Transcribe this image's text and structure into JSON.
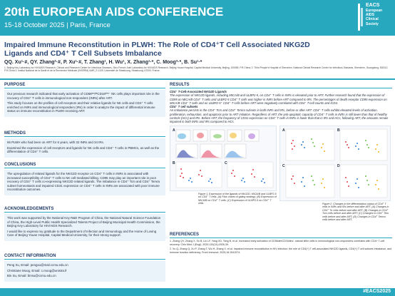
{
  "header": {
    "conference": "20th EUROPEAN AIDS CONFERENCE",
    "dates": "15-18 October 2025 | Paris, France",
    "logo": {
      "abbr": "EACS",
      "line1": "European",
      "line2": "AIDS",
      "line3": "Clinical",
      "line4": "Society"
    },
    "colors": {
      "banner": "#27a8bf",
      "title": "#2c4a7a",
      "box": "#eaf2fa"
    }
  },
  "poster": {
    "title": "Impaired Immune Reconstitution in PLWH: The Role of CD4⁺T Cell Associated NKG2D Ligands and CD4⁺ T Cell Subsets Imbalance",
    "authors": "QQ. Xu¹·#, QY. Zhang²·#, P. Xu¹·#, T. Zhang¹, H. Wu¹, X. Zhang¹·*, C. Moog³·*, B. Su¹·*",
    "affiliations": "1. Beijing Key Laboratory for HIV/AIDS Research, Clinical and Research Center for Infectious Diseases, Sino-French Joint Laboratory for HIV/AIDS Research, Beijing Youan Hospital, Capital Medical University, Beijing, 100069, P.R.China; 2. Third People's Hospital of Shenzhen, National Clinical Research Center for Infectious Diseases, Shenzhen, Guangdong, 518112, P.R.China 3. Institut National de la Santé et de la Recherche Médicale (INSERM) UMR_S 1109, Université de Strasbourg, Strasbourg, 67000, France."
  },
  "sections": {
    "purpose": {
      "heading": "PURPOSE",
      "p1": "Our previous research indicated that early activation of CD56ᵇʳⁱᵍʰᵗCD16ᵈⁱᵐ⁻ NK cells plays important role in the recovery of CD4⁺ T cells in immunological non-responders (INRs) after ART.",
      "p2": "This study focuses on the profiles of cell receptors and their relative ligands for NK cells and CD4⁺ T cells enriched on INRs and immunological responders (IRs) in order to analyze the impact of differential immune status on immune reconstitution in PLWH receiving ART."
    },
    "methods": {
      "heading": "METHODS",
      "p1": "66 PLWH who had been on ART for 6 years, with 32 INRs and 34 IRs.",
      "p2": "Examined the expression of cell receptors and ligands for NK cells and CD4⁺ T cells in PBMCs, as well as the differentiation of CD4⁺ T cells."
    },
    "conclusions": {
      "heading": "CONCLUSIONS",
      "p1": "The upregulation of related ligands for the NKG2D receptor on CD4⁺ T cells in INRs is associated with increased susceptibility of CD4⁺ T cells to NK cell-mediated killing. CD95 may play an important role in poor recovery of CD4⁺ T cells co-expressing NKG2D related ligands. The imbalance in CD4⁺ Tcm and CD4⁺ Temra subset homeostasis and impaired CD31 expression on CD4⁺ T cells in INRs are associated with poor immune reconstitution outcomes."
    },
    "acknowledgements": {
      "heading": "ACKNOWLEDGEMENTS",
      "p1": "This work was supported by the National Key R&D Program of China, the National Natural Science Foundation of China, the High-Level Public Health Specialized Talents Project of Beijing Municipal Health Commission, the Beijing Key Laboratory for HIV/AIDS Research.",
      "p2": "I would like to express my gratitude to the Department of Infection and Immunology and the Home of Loving Care of Beijing Youan Hospital, Capital Medical University, for their strong support."
    },
    "contact": {
      "heading": "CONTACT INFORMATION",
      "lines": [
        "Peng Xu, Email: pengxu@mail.ccmu.edu.cn",
        "Christiane Moog, Email: c.moog@unistra.fr",
        "Bin Su, Email: binsu@ccmu.edu.cn"
      ]
    },
    "results": {
      "heading": "RESULTS",
      "sub1": "CD4⁺ T-Cell-Associated NKG2D Ligands",
      "t1": "The expression of NKG2D ligands, including MICA/B and ULBP2-5, on CD4⁺ T cells in INRs is elevated prior to ART. Further research found that the expression of CD95 on MICA/B CD4⁺ T cells and ULBP2-5 CD4⁺ T cells was higher in INRs before ART compared to IRs. The percentages of death receptor CD95 expression on MICA/B CD4⁺ T cells and on ULBP2-5⁺ CD4⁺ T cells before ART were negatively correlated with CD4⁺ T-cell counts and ICD4.",
      "sub2": "CD4⁺ T cell subsets",
      "t2": "An imbalance persists in the CD4⁺ Tcm and CD4⁺ Temra subsets in both INRs and IRs, before or after ART. CD4⁺ T cells exhibit elevated levels of activation, proliferation, exhaustion, and apoptosis prior to ART initiation. Regardless of ART, the anti-apoptotic capacity of CD4⁺ T cells in INRs is still lower than that of healthy controls (HCs) and IRs. Before ART, the frequency of CD31 expression on CD4⁺ T cells in INRs is lower than that in IRs and HCs, following ART, the amounts remain impaired in both INRs and IRs compared to HCs.",
      "caption1": "Figure 1. Expression of the ligands of NKG2D, MICA/B and ULBP2-5 on CD4⁺ T cells. (A) Flow charts of gating strategy; (B) Expression of MICA/B on CD4⁺ T cells; (C) Expression of ULBP2-5 on CD4⁺ T cells.",
      "caption2": "Figure 2. Changes in the differentiation status of CD4⁺ T cells in INRs and IRs before and after ART. (A) Changes in CD4⁺ Tn cells before and after ART; (B) Changes in CD4⁺ Tcm cells before and after ART; (C) Changes in CD4⁺ Tem cells before and after ART; (D) Changes in CD4⁺ Temra cells before and after ART."
    },
    "references": {
      "heading": "REFERENCES",
      "items": [
        "1.  Zhang QY, Zhang X, Su B, Liu LF, Yang XD, Tang B, et al. Increased early activation of CD56dimCD16dim/- natural killer cells in immunological non-responders correlates with CD4+ T-cell recovery. Chin Med J (Engl). 2020;133(24):2928-39.",
        "2.  Xu Q, Zhang Q, Xu P, Zhang T, Wu H, Zhang X, et al. Impaired immune reconstitution in HIV infection: the role of CD4(+) T cell-associated NKG2D ligands, CD4(+) T cell subsets imbalance, and immune function deficiency. Front Immunol. 2025;16:1541574."
      ]
    }
  },
  "figures": {
    "fig1": {
      "panel_a": "A",
      "panel_b": "B",
      "panel_c": "C"
    },
    "fig2": {
      "panel_a": "A",
      "panel_b": "B",
      "panel_c": "C",
      "panel_d": "D"
    }
  },
  "footer": {
    "hashtag": "#EACS2025"
  }
}
